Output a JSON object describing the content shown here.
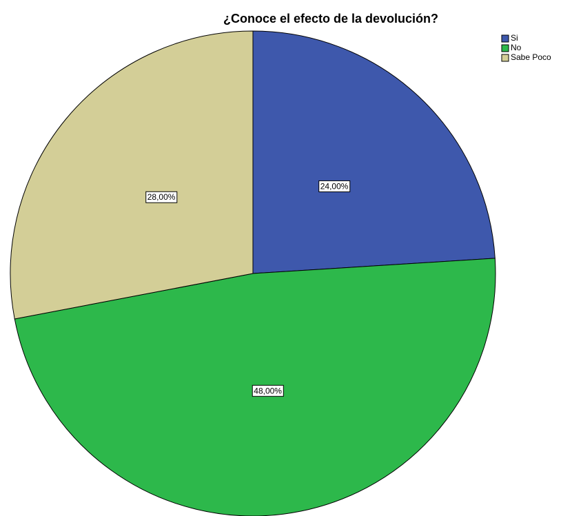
{
  "chart_data": {
    "type": "pie",
    "title": "¿Conoce el efecto de la devolución?",
    "categories": [
      "Si",
      "No",
      "Sabe Poco"
    ],
    "values": [
      24,
      48,
      28
    ],
    "value_labels": [
      "24,00%",
      "48,00%",
      "28,00%"
    ],
    "colors": [
      "#3e58ac",
      "#2db84b",
      "#d3ce97"
    ],
    "legend": "top-right"
  }
}
